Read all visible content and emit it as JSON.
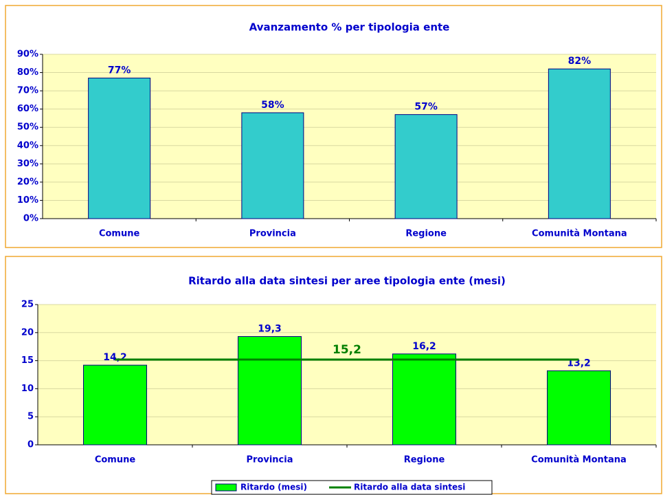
{
  "chart_data": [
    {
      "type": "bar",
      "title": "Avanzamento % per tipologia ente",
      "categories": [
        "Comune",
        "Provincia",
        "Regione",
        "Comunità Montana"
      ],
      "values": [
        77,
        58,
        57,
        82
      ],
      "value_labels": [
        "77%",
        "58%",
        "57%",
        "82%"
      ],
      "color": "#33cccc",
      "ylim": [
        0,
        90
      ],
      "yticks": [
        {
          "value": 0,
          "label": "0%"
        },
        {
          "value": 10,
          "label": "10%"
        },
        {
          "value": 20,
          "label": "20%"
        },
        {
          "value": 30,
          "label": "30%"
        },
        {
          "value": 40,
          "label": "40%"
        },
        {
          "value": 50,
          "label": "50%"
        },
        {
          "value": 60,
          "label": "60%"
        },
        {
          "value": 70,
          "label": "70%"
        },
        {
          "value": 80,
          "label": "80%"
        },
        {
          "value": 90,
          "label": "90%"
        }
      ],
      "grid": true
    },
    {
      "type": "combo",
      "title": "Ritardo alla data sintesi per aree tipologia ente (mesi)",
      "categories": [
        "Comune",
        "Provincia",
        "Regione",
        "Comunità Montana"
      ],
      "series": [
        {
          "name": "Ritardo (mesi)",
          "type": "bar",
          "color": "#00ff00",
          "values": [
            14.2,
            19.3,
            16.2,
            13.2
          ],
          "value_labels": [
            "14,2",
            "19,3",
            "16,2",
            "13,2"
          ]
        },
        {
          "name": "Ritardo alla data sintesi",
          "type": "line",
          "color": "#008000",
          "values": [
            15.2,
            15.2,
            15.2,
            15.2
          ],
          "value_labels": [
            null,
            "15,2",
            null,
            null
          ]
        }
      ],
      "ylim": [
        0,
        25
      ],
      "yticks": [
        0,
        5,
        10,
        15,
        20,
        25
      ],
      "grid": true,
      "legend": "bottom"
    }
  ]
}
